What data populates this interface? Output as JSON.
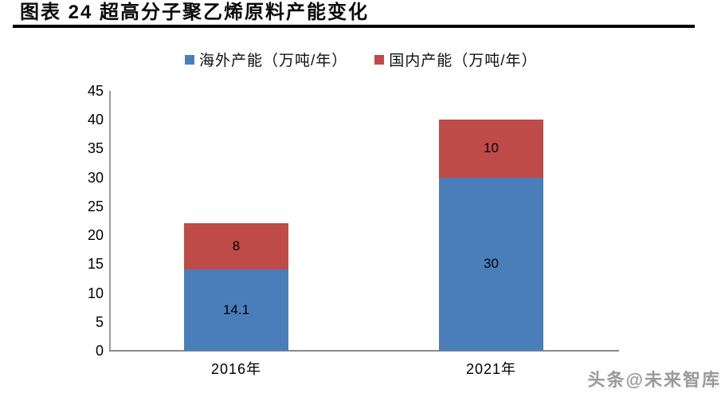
{
  "header": {
    "figure_label": "图表 24",
    "title": "图表 24  超高分子聚乙烯原料产能变化"
  },
  "footer": {
    "watermark": "头条@未来智库"
  },
  "colors": {
    "overseas_blue": "#4A7EBB",
    "domestic_red": "#BE4B48",
    "axis_gray": "#8B8B8B",
    "title_rule_black": "#000000",
    "watermark_gray": "#9A9A9A"
  },
  "chart_data": {
    "type": "bar",
    "subtype": "stacked-column",
    "title": "图表 24  超高分子聚乙烯原料产能变化",
    "categories": [
      "2016年",
      "2021年"
    ],
    "series": [
      {
        "name": "海外产能（万吨/年）",
        "color": "#4A7EBB",
        "values": [
          14.1,
          30
        ],
        "labels": [
          "14.1",
          "30"
        ]
      },
      {
        "name": "国内产能（万吨/年）",
        "color": "#BE4B48",
        "values": [
          8,
          10
        ],
        "labels": [
          "8",
          "10"
        ]
      }
    ],
    "totals": [
      22.1,
      40
    ],
    "xlabel": "",
    "ylabel": "",
    "ylim": [
      0,
      45
    ],
    "ytick_step": 5,
    "ytick_labels": [
      "0",
      "5",
      "10",
      "15",
      "20",
      "25",
      "30",
      "35",
      "40",
      "45"
    ],
    "grid": false,
    "legend_position": "top-center",
    "value_labels_shown": true
  }
}
